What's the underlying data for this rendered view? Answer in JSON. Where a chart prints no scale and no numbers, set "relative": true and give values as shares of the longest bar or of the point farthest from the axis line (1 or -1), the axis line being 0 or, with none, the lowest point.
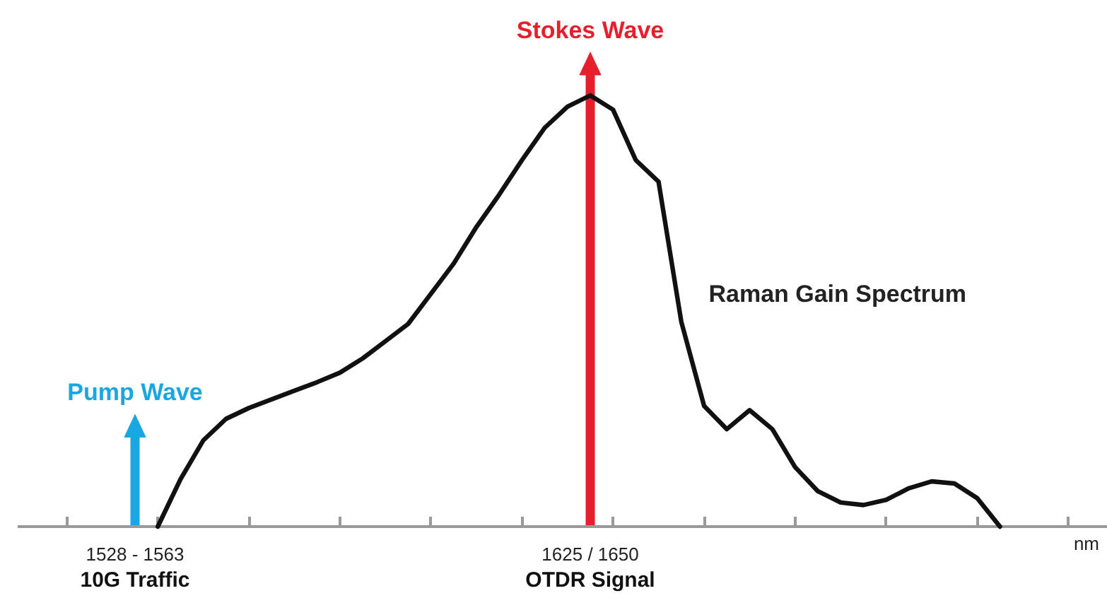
{
  "chart_data": {
    "type": "line",
    "relative": true,
    "xlabel": "nm",
    "grid": false,
    "categories": [
      null,
      null,
      null,
      "1528 - 1563",
      null,
      null,
      null,
      null,
      null,
      null,
      null,
      null,
      null,
      null,
      null,
      null,
      null,
      null,
      null,
      null,
      null,
      null,
      null,
      "1625 / 1650",
      null,
      null,
      null,
      null,
      null,
      null,
      null,
      null,
      null,
      null,
      null,
      null,
      null,
      null,
      null,
      null,
      null,
      null,
      null,
      null,
      null
    ],
    "series": [
      {
        "name": "Raman Gain Spectrum",
        "color": "#111111",
        "values": [
          null,
          null,
          null,
          null,
          0,
          0.11,
          0.2,
          0.25,
          0.275,
          0.295,
          0.315,
          0.335,
          0.357,
          0.39,
          0.43,
          0.47,
          0.54,
          0.61,
          0.695,
          0.77,
          0.85,
          0.925,
          0.974,
          1.0,
          0.967,
          0.85,
          0.8,
          0.475,
          0.28,
          0.226,
          0.27,
          0.226,
          0.138,
          0.082,
          0.056,
          0.05,
          0.062,
          0.089,
          0.105,
          0.1,
          0.066,
          0,
          null,
          null,
          null
        ]
      }
    ],
    "ref_lines": [
      {
        "axis": "x",
        "value": "1528 - 1563",
        "label": "Pump Wave",
        "color": "#1aa7e1"
      },
      {
        "axis": "x",
        "value": "1625 / 1650",
        "label": "Stokes Wave",
        "color": "#e51f2b"
      }
    ],
    "annotations": [
      "10G Traffic",
      "OTDR Signal"
    ]
  }
}
